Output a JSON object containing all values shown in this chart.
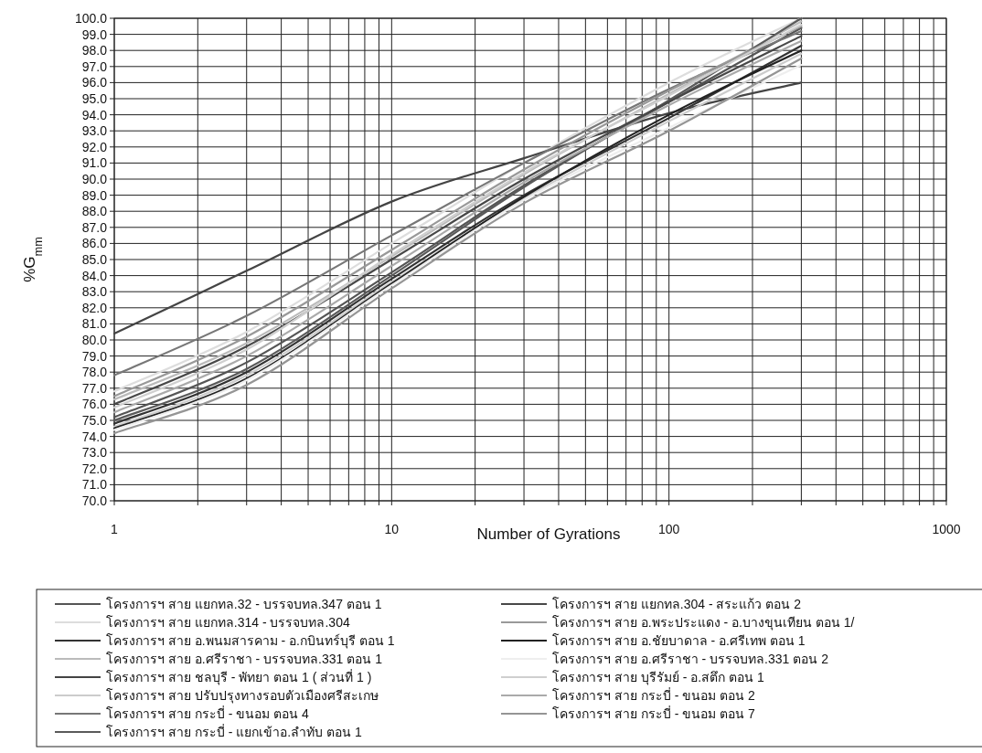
{
  "chart_data": {
    "type": "line",
    "xlabel": "Number of Gyrations",
    "ylabel": "%G$_{mm}$",
    "log": "x",
    "grid": true,
    "legend": "bottom",
    "line_style": "solid",
    "marker": "none",
    "xlim": [
      1,
      1000
    ],
    "xticks": [
      1,
      {
        "value": 2,
        "label": null
      },
      {
        "value": 3,
        "label": null
      },
      {
        "value": 4,
        "label": null
      },
      {
        "value": 5,
        "label": null
      },
      {
        "value": 6,
        "label": null
      },
      {
        "value": 7,
        "label": null
      },
      {
        "value": 8,
        "label": null
      },
      {
        "value": 9,
        "label": null
      },
      10,
      {
        "value": 20,
        "label": null
      },
      {
        "value": 30,
        "label": null
      },
      {
        "value": 40,
        "label": null
      },
      {
        "value": 50,
        "label": null
      },
      {
        "value": 60,
        "label": null
      },
      {
        "value": 70,
        "label": null
      },
      {
        "value": 80,
        "label": null
      },
      {
        "value": 90,
        "label": null
      },
      100,
      {
        "value": 200,
        "label": null
      },
      {
        "value": 300,
        "label": null
      },
      {
        "value": 400,
        "label": null
      },
      {
        "value": 500,
        "label": null
      },
      {
        "value": 600,
        "label": null
      },
      {
        "value": 700,
        "label": null
      },
      {
        "value": 800,
        "label": null
      },
      {
        "value": 900,
        "label": null
      },
      1000
    ],
    "ylim": [
      70,
      100
    ],
    "yticks": [
      {
        "value": 70,
        "label": "70.0"
      },
      {
        "value": 71,
        "label": "71.0"
      },
      {
        "value": 72,
        "label": "72.0"
      },
      {
        "value": 73,
        "label": "73.0"
      },
      {
        "value": 74,
        "label": "74.0"
      },
      {
        "value": 75,
        "label": "75.0"
      },
      {
        "value": 76,
        "label": "76.0"
      },
      {
        "value": 77,
        "label": "77.0"
      },
      {
        "value": 78,
        "label": "78.0"
      },
      {
        "value": 79,
        "label": "79.0"
      },
      {
        "value": 80,
        "label": "80.0"
      },
      {
        "value": 81,
        "label": "81.0"
      },
      {
        "value": 82,
        "label": "82.0"
      },
      {
        "value": 83,
        "label": "83.0"
      },
      {
        "value": 84,
        "label": "84.0"
      },
      {
        "value": 85,
        "label": "85.0"
      },
      {
        "value": 86,
        "label": "86.0"
      },
      {
        "value": 87,
        "label": "87.0"
      },
      {
        "value": 88,
        "label": "88.0"
      },
      {
        "value": 89,
        "label": "89.0"
      },
      {
        "value": 90,
        "label": "90.0"
      },
      {
        "value": 91,
        "label": "91.0"
      },
      {
        "value": 92,
        "label": "92.0"
      },
      {
        "value": 93,
        "label": "93.0"
      },
      {
        "value": 94,
        "label": "94.0"
      },
      {
        "value": 95,
        "label": "95.0"
      },
      {
        "value": 96,
        "label": "96.0"
      },
      {
        "value": 97,
        "label": "97.0"
      },
      {
        "value": 98,
        "label": "98.0"
      },
      {
        "value": 99,
        "label": "99.0"
      },
      {
        "value": 100,
        "label": "100.0"
      }
    ],
    "x": [
      1,
      3,
      10,
      30,
      100,
      300
    ],
    "series": [
      {
        "name": "โครงการฯ สาย แยกทล.32 - บรรจบทล.347 ตอน 1",
        "color": "#555555",
        "values": [
          75.2,
          78.6,
          84.2,
          89.6,
          94.8,
          99.4
        ]
      },
      {
        "name": "โครงการฯ สาย แยกทล.314 - บรรจบทล.304",
        "color": "#dddddd",
        "values": [
          76.8,
          80.5,
          86.0,
          91.0,
          96.0,
          100.0
        ]
      },
      {
        "name": "โครงการฯ สาย อ.พนมสารคาม - อ.กบินทร์บุรี ตอน 1",
        "color": "#333333",
        "values": [
          74.8,
          78.0,
          83.8,
          89.0,
          93.8,
          98.3
        ]
      },
      {
        "name": "โครงการฯ สาย อ.ศรีราชา - บรรจบทล.331 ตอน 1",
        "color": "#bbbbbb",
        "values": [
          76.3,
          79.8,
          85.2,
          90.3,
          95.3,
          99.8
        ]
      },
      {
        "name": "โครงการฯ สาย ชลบุรี - พัทยา ตอน 1 ( ส่วนที่ 1 )",
        "color": "#444444",
        "values": [
          80.4,
          84.3,
          88.6,
          91.3,
          94.1,
          96.0
        ]
      },
      {
        "name": "โครงการฯ สาย ปรับปรุงทางรอบตัวเมืองศรีสะเกษ",
        "color": "#cccccc",
        "values": [
          74.6,
          77.8,
          83.6,
          88.8,
          93.6,
          97.8
        ]
      },
      {
        "name": "โครงการฯ สาย กระบี่ - ขนอม ตอน 4",
        "color": "#777777",
        "values": [
          77.8,
          81.5,
          86.5,
          91.0,
          95.6,
          99.2
        ]
      },
      {
        "name": "โครงการฯ สาย กระบี่ - แยกเข้าอ.ลำทับ ตอน 1",
        "color": "#5a5a5a",
        "values": [
          75.0,
          78.2,
          84.0,
          89.5,
          94.9,
          100.0
        ]
      },
      {
        "name": "โครงการฯ สาย แยกทล.304 - สระแก้ว ตอน 2",
        "color": "#484848",
        "values": [
          76.0,
          79.6,
          85.0,
          90.0,
          94.8,
          98.9
        ]
      },
      {
        "name": "โครงการฯ สาย อ.พระประแดง - อ.บางขุนเทียน ตอน 1/",
        "color": "#999999",
        "values": [
          76.5,
          80.2,
          85.6,
          90.6,
          95.5,
          99.5
        ]
      },
      {
        "name": "โครงการฯ สาย อ.ชัยบาดาล - อ.ศรีเทพ ตอน 1",
        "color": "#222222",
        "values": [
          74.5,
          77.6,
          83.5,
          88.9,
          94.0,
          98.0
        ]
      },
      {
        "name": "โครงการฯ สาย อ.ศรีราชา - บรรจบทล.331 ตอน 2",
        "color": "#eeeeee",
        "values": [
          74.4,
          77.5,
          83.4,
          88.7,
          93.2,
          97.1
        ]
      },
      {
        "name": "โครงการฯ สาย บุรีรัมย์ - อ.สตึก ตอน 1",
        "color": "#cfcfcf",
        "values": [
          75.8,
          79.4,
          85.3,
          90.4,
          95.2,
          99.6
        ]
      },
      {
        "name": "โครงการฯ สาย กระบี่ - ขนอม ตอน 2",
        "color": "#aaaaaa",
        "values": [
          75.5,
          79.0,
          84.6,
          89.8,
          94.6,
          98.6
        ]
      },
      {
        "name": "โครงการฯ สาย กระบี่ - ขนอม ตอน 7",
        "color": "#959595",
        "values": [
          74.2,
          77.2,
          83.2,
          88.5,
          93.0,
          97.5
        ]
      }
    ]
  }
}
